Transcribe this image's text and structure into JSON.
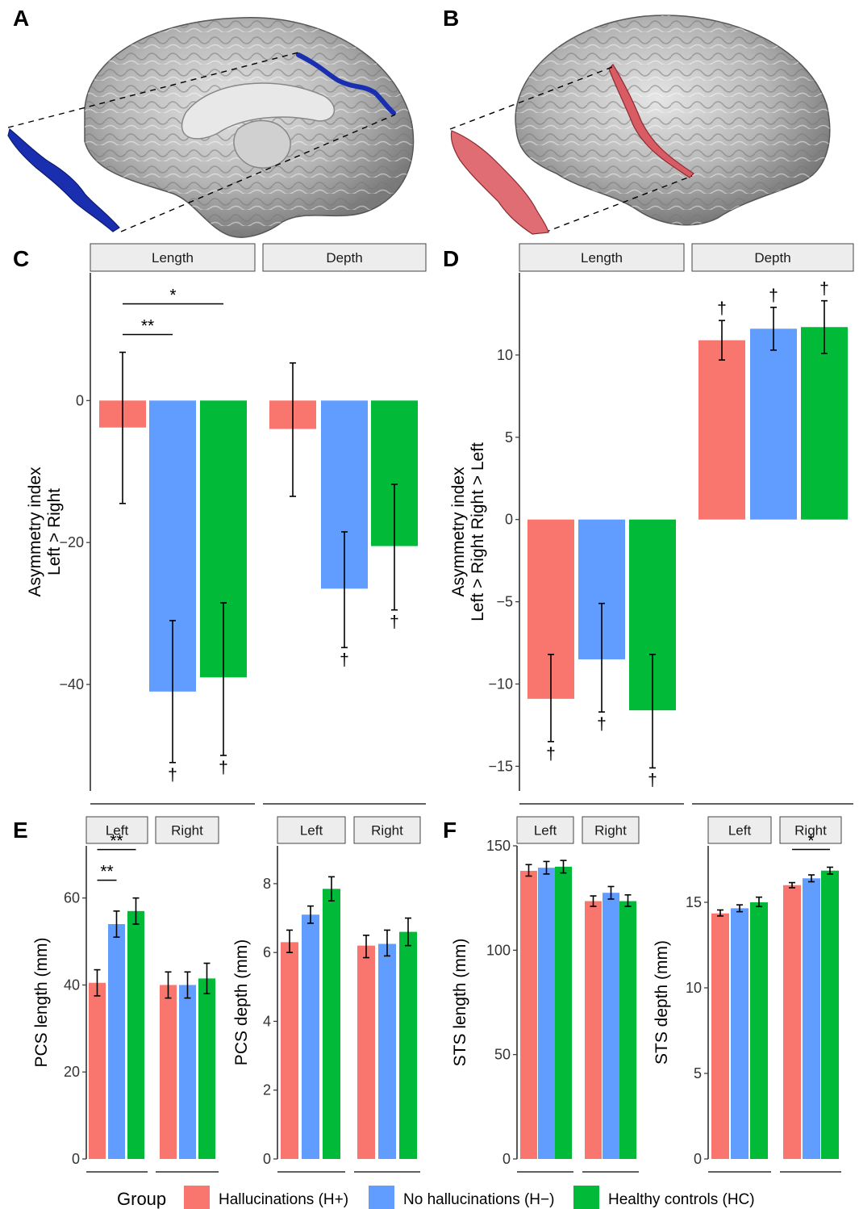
{
  "panels": {
    "a": "A",
    "b": "B",
    "c": "C",
    "d": "D",
    "e": "E",
    "f": "F"
  },
  "colors": {
    "hallucinations": "#F8766D",
    "no_hallucinations": "#619CFF",
    "healthy_controls": "#00BA38",
    "sulcus_blue": "#1a2fb0",
    "sulcus_red": "#d95c64",
    "brain_gray": "#a9a9a9"
  },
  "legend": {
    "title": "Group",
    "items": [
      {
        "label": "Hallucinations (H+)",
        "color": "#F8766D"
      },
      {
        "label": "No hallucinations (H−)",
        "color": "#619CFF"
      },
      {
        "label": "Healthy controls (HC)",
        "color": "#00BA38"
      }
    ]
  },
  "brain_images": {
    "a": {
      "view": "medial",
      "highlight": "paracingulate sulcus",
      "color": "blue",
      "icon": "brain-medial-icon"
    },
    "b": {
      "view": "lateral",
      "highlight": "superior temporal sulcus",
      "color": "red",
      "icon": "brain-lateral-icon"
    }
  },
  "chart_data": [
    {
      "id": "C",
      "type": "bar",
      "ylabel_lines": [
        "Asymmetry index",
        "Left > Right"
      ],
      "ylim": [
        -55,
        18
      ],
      "yticks": [
        0,
        -20,
        -40
      ],
      "facets": [
        {
          "label": "Length",
          "values": [
            -3.8,
            -41.0,
            -39.0
          ],
          "err_lo": [
            -14.5,
            -51.0,
            -50.0
          ],
          "err_hi": [
            6.8,
            -31.0,
            -28.5
          ],
          "daggers": [
            false,
            true,
            true
          ],
          "brackets": [
            {
              "from": 0,
              "to": 1,
              "label": "**"
            },
            {
              "from": 0,
              "to": 2,
              "label": "*"
            }
          ]
        },
        {
          "label": "Depth",
          "values": [
            -4.0,
            -26.5,
            -20.5
          ],
          "err_lo": [
            -13.5,
            -34.8,
            -29.5
          ],
          "err_hi": [
            5.3,
            -18.5,
            -11.8
          ],
          "daggers": [
            false,
            true,
            true
          ],
          "brackets": []
        }
      ]
    },
    {
      "id": "D",
      "type": "bar",
      "ylabel_lines": [
        "Asymmetry index",
        "Left > Right   Right > Left"
      ],
      "ylim": [
        -16.5,
        15
      ],
      "yticks": [
        10,
        5,
        0,
        -5,
        -10,
        -15
      ],
      "facets": [
        {
          "label": "Length",
          "values": [
            -10.9,
            -8.5,
            -11.6
          ],
          "err_lo": [
            -13.5,
            -11.7,
            -15.1
          ],
          "err_hi": [
            -8.2,
            -5.1,
            -8.2
          ],
          "daggers": [
            true,
            true,
            true
          ],
          "brackets": []
        },
        {
          "label": "Depth",
          "values": [
            10.9,
            11.6,
            11.7
          ],
          "err_lo": [
            9.7,
            10.3,
            10.1
          ],
          "err_hi": [
            12.1,
            12.9,
            13.3
          ],
          "daggers": [
            true,
            true,
            true
          ],
          "brackets": []
        }
      ]
    },
    {
      "id": "E-length",
      "type": "bar",
      "ylabel": "PCS length (mm)",
      "ylim": [
        0,
        72
      ],
      "yticks": [
        0,
        20,
        40,
        60
      ],
      "facets": [
        {
          "label": "Left",
          "values": [
            40.5,
            54.0,
            57.0
          ],
          "err_lo": [
            37.5,
            51.0,
            54.0
          ],
          "err_hi": [
            43.5,
            57.0,
            60.0
          ],
          "brackets": [
            {
              "from": 0,
              "to": 1,
              "label": "**"
            },
            {
              "from": 0,
              "to": 2,
              "label": "**"
            }
          ]
        },
        {
          "label": "Right",
          "values": [
            40.0,
            40.0,
            41.5
          ],
          "err_lo": [
            37.0,
            37.0,
            38.0
          ],
          "err_hi": [
            43.0,
            43.0,
            45.0
          ],
          "brackets": []
        }
      ]
    },
    {
      "id": "E-depth",
      "type": "bar",
      "ylabel": "PCS depth (mm)",
      "ylim": [
        0,
        9.1
      ],
      "yticks": [
        0,
        2,
        4,
        6,
        8
      ],
      "facets": [
        {
          "label": "Left",
          "values": [
            6.3,
            7.1,
            7.85
          ],
          "err_lo": [
            6.0,
            6.85,
            7.5
          ],
          "err_hi": [
            6.65,
            7.35,
            8.2
          ],
          "brackets": []
        },
        {
          "label": "Right",
          "values": [
            6.2,
            6.25,
            6.6
          ],
          "err_lo": [
            5.85,
            5.9,
            6.2
          ],
          "err_hi": [
            6.5,
            6.65,
            7.0
          ],
          "brackets": []
        }
      ]
    },
    {
      "id": "F-length",
      "type": "bar",
      "ylabel": "STS length (mm)",
      "ylim": [
        0,
        150
      ],
      "yticks": [
        0,
        50,
        100,
        150
      ],
      "facets": [
        {
          "label": "Left",
          "values": [
            138,
            139.5,
            140
          ],
          "err_lo": [
            135.5,
            136.5,
            137
          ],
          "err_hi": [
            141,
            142.5,
            143
          ],
          "brackets": []
        },
        {
          "label": "Right",
          "values": [
            123.5,
            127.5,
            123.5
          ],
          "err_lo": [
            121,
            124.5,
            121
          ],
          "err_hi": [
            126,
            130.5,
            126.5
          ],
          "brackets": []
        }
      ]
    },
    {
      "id": "F-depth",
      "type": "bar",
      "ylabel": "STS depth (mm)",
      "ylim": [
        0,
        18.3
      ],
      "yticks": [
        0,
        5,
        10,
        15
      ],
      "facets": [
        {
          "label": "Left",
          "values": [
            14.35,
            14.65,
            15.0
          ],
          "err_lo": [
            14.2,
            14.45,
            14.75
          ],
          "err_hi": [
            14.55,
            14.85,
            15.3
          ],
          "brackets": []
        },
        {
          "label": "Right",
          "values": [
            16.0,
            16.4,
            16.85
          ],
          "err_lo": [
            15.85,
            16.2,
            16.65
          ],
          "err_hi": [
            16.15,
            16.6,
            17.05
          ],
          "brackets": [
            {
              "from": 0,
              "to": 2,
              "label": "*"
            }
          ]
        }
      ]
    }
  ]
}
